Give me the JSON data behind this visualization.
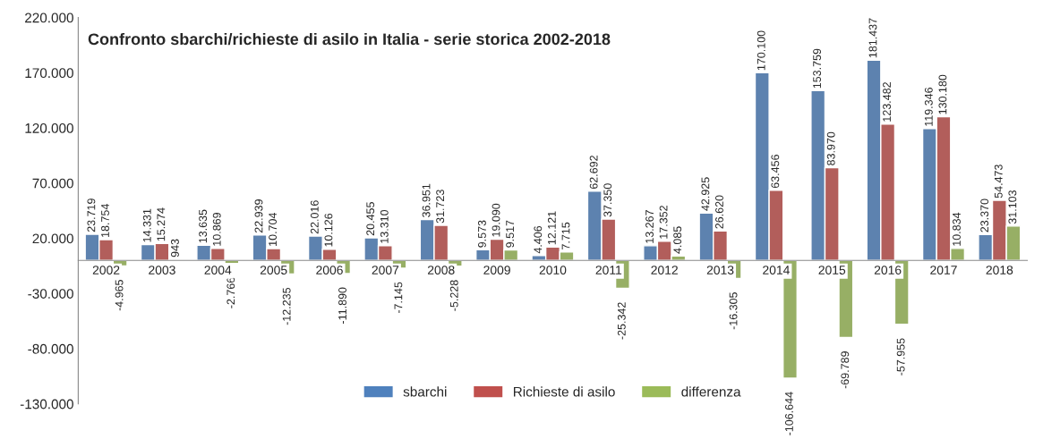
{
  "chart_data": {
    "type": "bar",
    "title": "Confronto sbarchi/richieste di asilo in Italia - serie storica 2002-2018",
    "categories": [
      "2002",
      "2003",
      "2004",
      "2005",
      "2006",
      "2007",
      "2008",
      "2009",
      "2010",
      "2011",
      "2012",
      "2013",
      "2014",
      "2015",
      "2016",
      "2017",
      "2018"
    ],
    "series": [
      {
        "name": "sbarchi",
        "color": "#4f81bd",
        "values": [
          23719,
          14331,
          13635,
          22939,
          22016,
          20455,
          36951,
          9573,
          4406,
          62692,
          13267,
          42925,
          170100,
          153759,
          181437,
          119346,
          23370
        ],
        "value_labels": [
          "23.719",
          "14.331",
          "13.635",
          "22.939",
          "22.016",
          "20.455",
          "36.951",
          "9.573",
          "4.406",
          "62.692",
          "13.267",
          "42.925",
          "170.100",
          "153.759",
          "181.437",
          "119.346",
          "23.370"
        ]
      },
      {
        "name": "Richieste di asilo",
        "color": "#c0504d",
        "values": [
          18754,
          15274,
          10869,
          10704,
          10126,
          13310,
          31723,
          19090,
          12121,
          37350,
          17352,
          26620,
          63456,
          83970,
          123482,
          130180,
          54473
        ],
        "value_labels": [
          "18.754",
          "15.274",
          "10.869",
          "10.704",
          "10.126",
          "13.310",
          "31.723",
          "19.090",
          "12.121",
          "37.350",
          "17.352",
          "26.620",
          "63.456",
          "83.970",
          "123.482",
          "130.180",
          "54.473"
        ]
      },
      {
        "name": "differenza",
        "color": "#9bbb59",
        "values": [
          -4965,
          943,
          -2766,
          -12235,
          -11890,
          -7145,
          -5228,
          9517,
          7715,
          -25342,
          4085,
          -16305,
          -106644,
          -69789,
          -57955,
          10834,
          31103
        ],
        "value_labels": [
          "-4.965",
          "943",
          "-2.766",
          "-12.235",
          "-11.890",
          "-7.145",
          "-5.228",
          "9.517",
          "7.715",
          "-25.342",
          "4.085",
          "-16.305",
          "-106.644",
          "-69.789",
          "-57.955",
          "10.834",
          "31.103"
        ]
      }
    ],
    "ylim": [
      -130000,
      220000
    ],
    "yticks": [
      {
        "value": -130000,
        "label": "-130.000"
      },
      {
        "value": -80000,
        "label": "-80.000"
      },
      {
        "value": -30000,
        "label": "-30.000"
      },
      {
        "value": 20000,
        "label": "20.000"
      },
      {
        "value": 70000,
        "label": "70.000"
      },
      {
        "value": 120000,
        "label": "120.000"
      },
      {
        "value": 170000,
        "label": "170.000"
      },
      {
        "value": 220000,
        "label": "220.000"
      }
    ],
    "grid": false,
    "legend": "bottom"
  }
}
